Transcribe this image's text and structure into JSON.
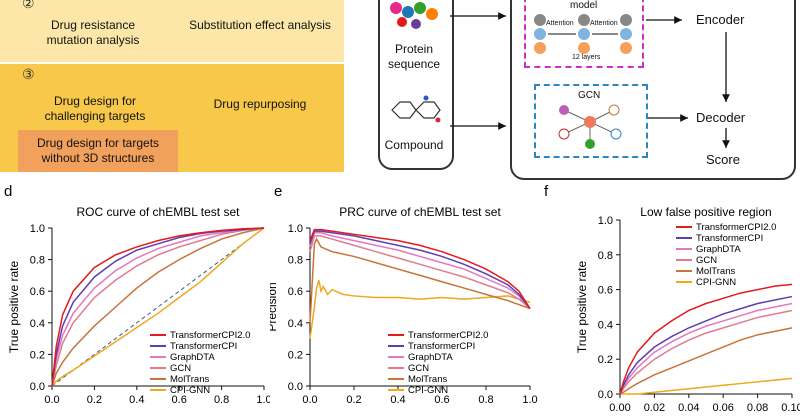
{
  "panel_top_left": {
    "step2_marker": "②",
    "step3_marker": "③",
    "cell_drug_resistance": "Drug resistance mutation analysis",
    "cell_substitution": "Substitution effect analysis",
    "cell_challenging": "Drug design for challenging targets",
    "cell_repurposing": "Drug repurposing",
    "cell_no3d": "Drug design for targets without 3D structures"
  },
  "panel_top_right": {
    "protein_label": "Protein sequence",
    "compound_label": "Compound",
    "model_label": "model",
    "attention_label_1": "Attention",
    "attention_label_2": "Attention",
    "layers_label": "12 layers",
    "gcn_label": "GCN",
    "encoder_label": "Encoder",
    "decoder_label": "Decoder",
    "score_label": "Score"
  },
  "colors": {
    "TransformerCPI2.0": "#e41a1c",
    "TransformerCPI": "#5b3fb3",
    "GraphDTA": "#e377c2",
    "GCN": "#e07b91",
    "MolTrans": "#c8733a",
    "CPI-GNN": "#f0a81c"
  },
  "chart_data": [
    {
      "panel": "d",
      "type": "line",
      "title": "ROC curve of chEMBL test set",
      "xlabel": "",
      "ylabel": "True positive rate",
      "xlim": [
        0,
        1
      ],
      "ylim": [
        0,
        1
      ],
      "xticks": [
        "0.0",
        "0.2",
        "0.4",
        "0.6",
        "0.8",
        "1.0"
      ],
      "yticks": [
        "0.0",
        "0.2",
        "0.4",
        "0.6",
        "0.8",
        "1.0"
      ],
      "diagonal": true,
      "legend": [
        "TransformerCPI2.0",
        "TransformerCPI",
        "GraphDTA",
        "GCN",
        "MolTrans",
        "CPI-GNN"
      ],
      "series": [
        {
          "name": "TransformerCPI2.0",
          "x": [
            0,
            0.02,
            0.05,
            0.1,
            0.2,
            0.3,
            0.4,
            0.5,
            0.6,
            0.7,
            0.8,
            0.9,
            1.0
          ],
          "y": [
            0,
            0.25,
            0.45,
            0.6,
            0.75,
            0.83,
            0.88,
            0.92,
            0.95,
            0.97,
            0.985,
            0.995,
            1.0
          ]
        },
        {
          "name": "TransformerCPI",
          "x": [
            0,
            0.02,
            0.05,
            0.1,
            0.2,
            0.3,
            0.4,
            0.5,
            0.6,
            0.7,
            0.8,
            0.9,
            1.0
          ],
          "y": [
            0,
            0.2,
            0.38,
            0.53,
            0.69,
            0.79,
            0.86,
            0.9,
            0.94,
            0.965,
            0.98,
            0.99,
            1.0
          ]
        },
        {
          "name": "GraphDTA",
          "x": [
            0,
            0.02,
            0.05,
            0.1,
            0.2,
            0.3,
            0.4,
            0.5,
            0.6,
            0.7,
            0.8,
            0.9,
            1.0
          ],
          "y": [
            0,
            0.17,
            0.32,
            0.46,
            0.62,
            0.73,
            0.81,
            0.87,
            0.91,
            0.95,
            0.97,
            0.99,
            1.0
          ]
        },
        {
          "name": "GCN",
          "x": [
            0,
            0.02,
            0.05,
            0.1,
            0.2,
            0.3,
            0.4,
            0.5,
            0.6,
            0.7,
            0.8,
            0.9,
            1.0
          ],
          "y": [
            0,
            0.13,
            0.27,
            0.4,
            0.56,
            0.67,
            0.76,
            0.83,
            0.88,
            0.92,
            0.96,
            0.985,
            1.0
          ]
        },
        {
          "name": "MolTrans",
          "x": [
            0,
            0.02,
            0.05,
            0.1,
            0.2,
            0.3,
            0.4,
            0.5,
            0.6,
            0.7,
            0.8,
            0.9,
            1.0
          ],
          "y": [
            0,
            0.08,
            0.15,
            0.24,
            0.38,
            0.5,
            0.62,
            0.72,
            0.8,
            0.87,
            0.93,
            0.97,
            1.0
          ]
        },
        {
          "name": "CPI-GNN",
          "x": [
            0,
            0.02,
            0.05,
            0.1,
            0.2,
            0.3,
            0.4,
            0.5,
            0.6,
            0.7,
            0.8,
            0.9,
            1.0
          ],
          "y": [
            0,
            0.03,
            0.06,
            0.1,
            0.19,
            0.28,
            0.37,
            0.46,
            0.56,
            0.66,
            0.78,
            0.9,
            1.0
          ]
        }
      ]
    },
    {
      "panel": "e",
      "type": "line",
      "title": "PRC curve of chEMBL test set",
      "xlabel": "",
      "ylabel": "Precision",
      "xlim": [
        0,
        1
      ],
      "ylim": [
        0,
        1
      ],
      "xticks": [
        "0.0",
        "0.2",
        "0.4",
        "0.6",
        "0.8",
        "1.0"
      ],
      "yticks": [
        "0.0",
        "0.2",
        "0.4",
        "0.6",
        "0.8",
        "1.0"
      ],
      "legend": [
        "TransformerCPI2.0",
        "TransformerCPI",
        "GraphDTA",
        "GCN",
        "MolTrans",
        "CPI-GNN"
      ],
      "series": [
        {
          "name": "TransformerCPI2.0",
          "x": [
            0.0,
            0.02,
            0.05,
            0.1,
            0.2,
            0.3,
            0.4,
            0.5,
            0.6,
            0.7,
            0.8,
            0.9,
            0.95,
            1.0
          ],
          "y": [
            0.92,
            0.99,
            0.99,
            0.98,
            0.96,
            0.94,
            0.92,
            0.89,
            0.85,
            0.8,
            0.74,
            0.66,
            0.6,
            0.49
          ]
        },
        {
          "name": "TransformerCPI",
          "x": [
            0.0,
            0.02,
            0.05,
            0.1,
            0.2,
            0.3,
            0.4,
            0.5,
            0.6,
            0.7,
            0.8,
            0.9,
            0.95,
            1.0
          ],
          "y": [
            0.9,
            0.98,
            0.98,
            0.97,
            0.95,
            0.92,
            0.89,
            0.86,
            0.82,
            0.77,
            0.71,
            0.64,
            0.58,
            0.49
          ]
        },
        {
          "name": "GraphDTA",
          "x": [
            0.0,
            0.02,
            0.05,
            0.1,
            0.2,
            0.3,
            0.4,
            0.5,
            0.6,
            0.7,
            0.8,
            0.9,
            0.95,
            1.0
          ],
          "y": [
            0.88,
            0.97,
            0.97,
            0.95,
            0.92,
            0.89,
            0.86,
            0.82,
            0.78,
            0.74,
            0.68,
            0.62,
            0.57,
            0.49
          ]
        },
        {
          "name": "GCN",
          "x": [
            0.0,
            0.02,
            0.05,
            0.1,
            0.2,
            0.3,
            0.4,
            0.5,
            0.6,
            0.7,
            0.8,
            0.9,
            0.95,
            1.0
          ],
          "y": [
            0.85,
            0.95,
            0.95,
            0.93,
            0.89,
            0.85,
            0.81,
            0.77,
            0.73,
            0.69,
            0.64,
            0.59,
            0.55,
            0.49
          ]
        },
        {
          "name": "MolTrans",
          "x": [
            0.0,
            0.02,
            0.03,
            0.05,
            0.1,
            0.2,
            0.3,
            0.4,
            0.5,
            0.6,
            0.7,
            0.8,
            0.9,
            1.0
          ],
          "y": [
            0.4,
            0.9,
            0.93,
            0.88,
            0.85,
            0.82,
            0.78,
            0.74,
            0.7,
            0.66,
            0.62,
            0.58,
            0.54,
            0.49
          ]
        },
        {
          "name": "CPI-GNN",
          "x": [
            0.0,
            0.02,
            0.03,
            0.04,
            0.05,
            0.06,
            0.08,
            0.1,
            0.15,
            0.2,
            0.3,
            0.4,
            0.5,
            0.6,
            0.7,
            0.8,
            0.9,
            1.0
          ],
          "y": [
            0.3,
            0.5,
            0.62,
            0.67,
            0.6,
            0.63,
            0.58,
            0.61,
            0.58,
            0.57,
            0.56,
            0.56,
            0.55,
            0.56,
            0.55,
            0.56,
            0.57,
            0.53
          ]
        }
      ]
    },
    {
      "panel": "f",
      "type": "line",
      "title": "Low false positive region",
      "xlabel": "",
      "ylabel": "True positive rate",
      "xlim": [
        0,
        0.1
      ],
      "ylim": [
        0,
        1
      ],
      "xticks": [
        "0.00",
        "0.02",
        "0.04",
        "0.06",
        "0.08",
        "0.10"
      ],
      "yticks": [
        "0.0",
        "0.2",
        "0.4",
        "0.6",
        "0.8",
        "1.0"
      ],
      "legend": [
        "TransformerCPI2.0",
        "TransformerCPI",
        "GraphDTA",
        "GCN",
        "MolTrans",
        "CPI-GNN"
      ],
      "series": [
        {
          "name": "TransformerCPI2.0",
          "x": [
            0,
            0.002,
            0.005,
            0.01,
            0.02,
            0.03,
            0.04,
            0.05,
            0.06,
            0.07,
            0.08,
            0.09,
            0.1
          ],
          "y": [
            0,
            0.07,
            0.15,
            0.24,
            0.35,
            0.42,
            0.48,
            0.52,
            0.55,
            0.58,
            0.6,
            0.62,
            0.63
          ]
        },
        {
          "name": "TransformerCPI",
          "x": [
            0,
            0.002,
            0.005,
            0.01,
            0.02,
            0.03,
            0.04,
            0.05,
            0.06,
            0.07,
            0.08,
            0.09,
            0.1
          ],
          "y": [
            0,
            0.05,
            0.11,
            0.18,
            0.27,
            0.33,
            0.38,
            0.42,
            0.46,
            0.49,
            0.52,
            0.54,
            0.56
          ]
        },
        {
          "name": "GraphDTA",
          "x": [
            0,
            0.002,
            0.005,
            0.01,
            0.02,
            0.03,
            0.04,
            0.05,
            0.06,
            0.07,
            0.08,
            0.09,
            0.1
          ],
          "y": [
            0,
            0.04,
            0.09,
            0.15,
            0.24,
            0.3,
            0.35,
            0.39,
            0.42,
            0.45,
            0.48,
            0.5,
            0.52
          ]
        },
        {
          "name": "GCN",
          "x": [
            0,
            0.002,
            0.005,
            0.01,
            0.02,
            0.03,
            0.04,
            0.05,
            0.06,
            0.07,
            0.08,
            0.09,
            0.1
          ],
          "y": [
            0,
            0.03,
            0.07,
            0.12,
            0.2,
            0.26,
            0.31,
            0.35,
            0.38,
            0.41,
            0.44,
            0.46,
            0.48
          ]
        },
        {
          "name": "MolTrans",
          "x": [
            0,
            0.002,
            0.005,
            0.01,
            0.02,
            0.03,
            0.04,
            0.05,
            0.06,
            0.07,
            0.08,
            0.09,
            0.1
          ],
          "y": [
            0,
            0.01,
            0.03,
            0.06,
            0.11,
            0.15,
            0.19,
            0.23,
            0.27,
            0.31,
            0.34,
            0.36,
            0.38
          ]
        },
        {
          "name": "CPI-GNN",
          "x": [
            0,
            0.005,
            0.01,
            0.02,
            0.03,
            0.04,
            0.05,
            0.06,
            0.07,
            0.08,
            0.09,
            0.1
          ],
          "y": [
            0,
            0.0,
            0.0,
            0.01,
            0.02,
            0.03,
            0.04,
            0.05,
            0.06,
            0.07,
            0.08,
            0.09
          ]
        }
      ]
    }
  ],
  "panel_letters": {
    "d": "d",
    "e": "e",
    "f": "f"
  }
}
